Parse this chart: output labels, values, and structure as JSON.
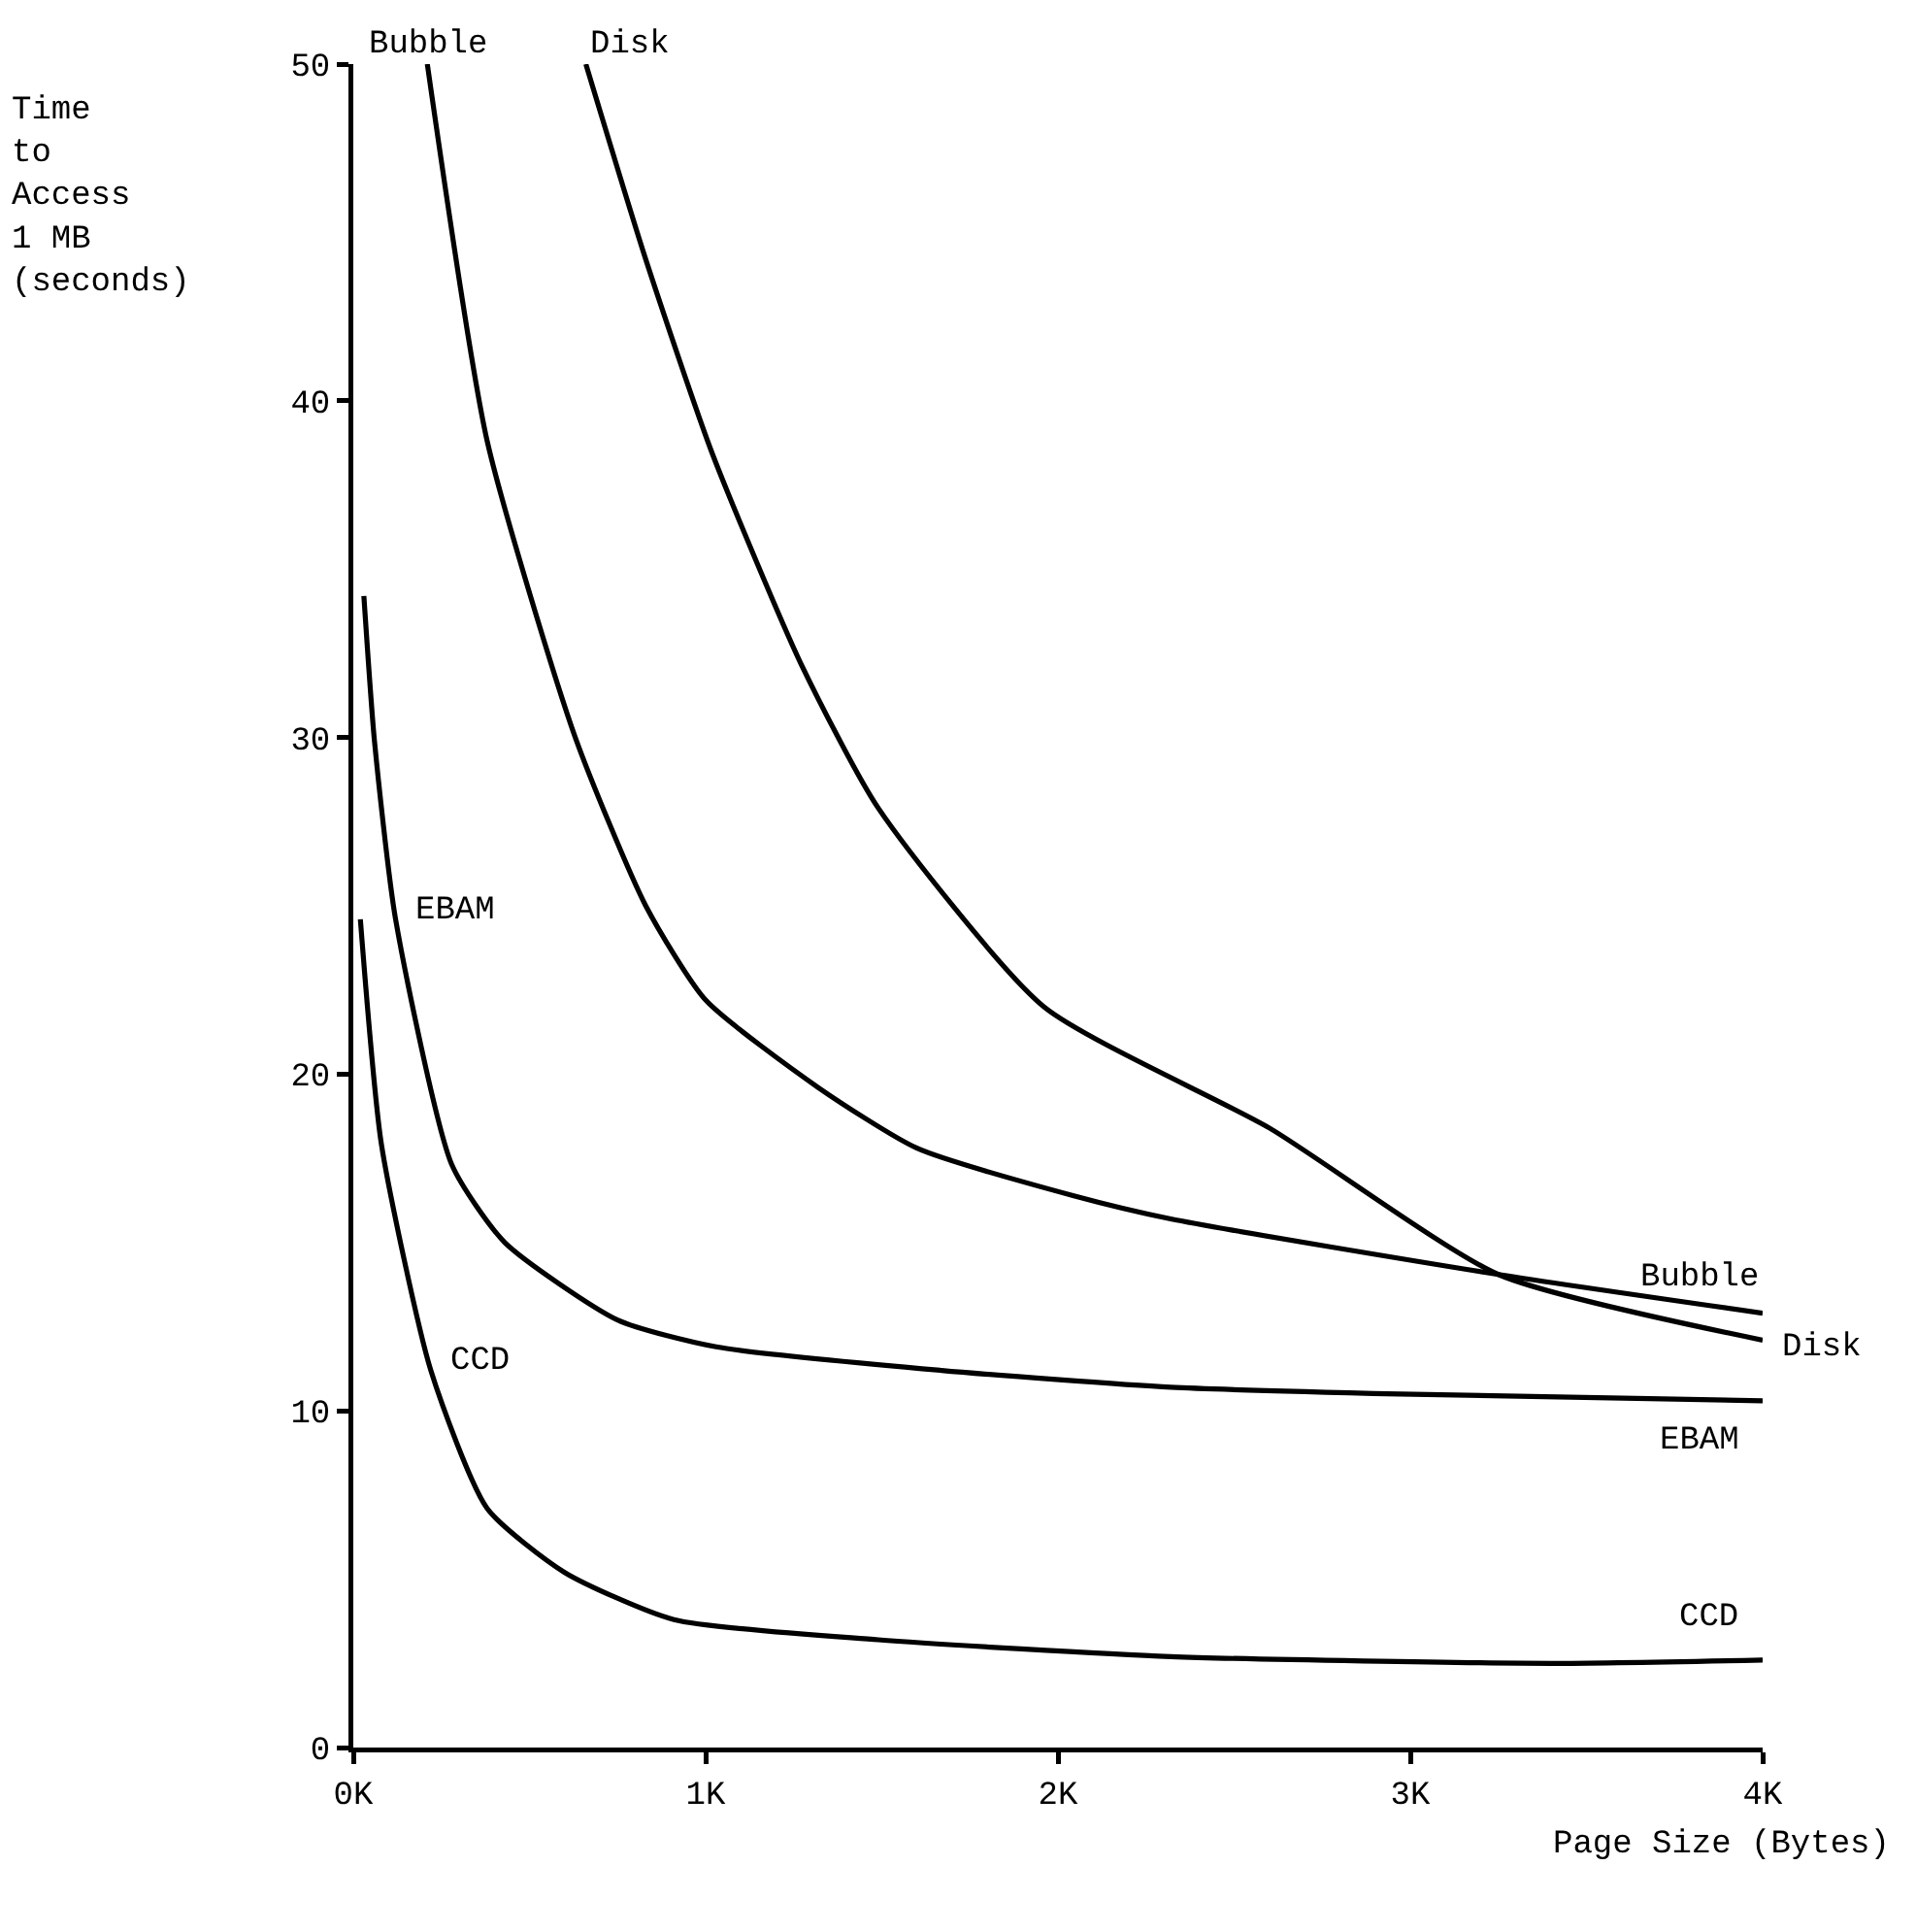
{
  "chart_data": {
    "type": "line",
    "ylabel": "Time\nto\nAccess\n1 MB\n(seconds)",
    "xlabel": "Page Size (Bytes)",
    "xlim": [
      0,
      4
    ],
    "xticks": [
      {
        "value": 0,
        "label": "0K"
      },
      {
        "value": 1,
        "label": "1K"
      },
      {
        "value": 2,
        "label": "2K"
      },
      {
        "value": 3,
        "label": "3K"
      },
      {
        "value": 4,
        "label": "4K"
      }
    ],
    "ylim": [
      0,
      50
    ],
    "yticks": [
      0,
      10,
      20,
      30,
      40,
      50
    ],
    "grid": false,
    "legend": false,
    "marker": "none",
    "line_style": "solid",
    "series": [
      {
        "name": "Bubble",
        "color": "#000000",
        "x": [
          0.21,
          0.38,
          0.63,
          0.83,
          1.0,
          1.32,
          1.6,
          2.04,
          2.32,
          3.25,
          4.0
        ],
        "values": [
          50,
          38.8,
          30.0,
          25.0,
          22.2,
          19.6,
          17.8,
          16.4,
          15.7,
          14.05,
          12.9
        ]
      },
      {
        "name": "Disk",
        "color": "#000000",
        "x": [
          0.66,
          0.83,
          1.02,
          1.27,
          1.49,
          1.96,
          2.6,
          3.25,
          4.0
        ],
        "values": [
          50,
          44.2,
          38.4,
          32.2,
          27.9,
          22.0,
          18.4,
          14.05,
          12.1
        ]
      },
      {
        "name": "EBAM",
        "color": "#000000",
        "x": [
          0.03,
          0.06,
          0.12,
          0.28,
          0.43,
          0.75,
          1.03,
          1.67,
          2.32,
          2.97,
          4.0
        ],
        "values": [
          34.2,
          29.9,
          24.6,
          17.3,
          15.0,
          12.7,
          11.9,
          11.2,
          10.7,
          10.5,
          10.3
        ]
      },
      {
        "name": "CCD",
        "color": "#000000",
        "x": [
          0.02,
          0.08,
          0.22,
          0.38,
          0.6,
          0.91,
          1.49,
          2.32,
          3.4,
          4.0
        ],
        "values": [
          24.6,
          17.9,
          11.2,
          7.1,
          5.2,
          3.8,
          3.2,
          2.7,
          2.5,
          2.6
        ]
      }
    ]
  }
}
